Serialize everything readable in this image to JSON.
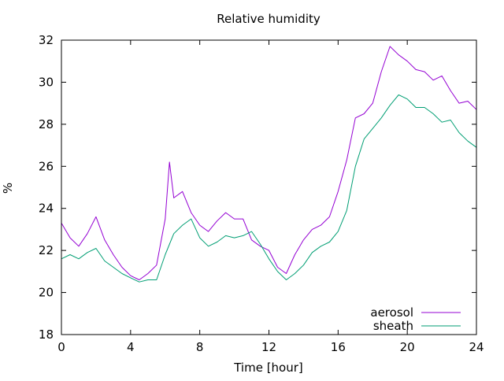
{
  "chart_data": {
    "type": "line",
    "title": "Relative humidity",
    "xlabel": "Time [hour]",
    "ylabel": "%",
    "xlim": [
      0,
      24
    ],
    "ylim": [
      18,
      32
    ],
    "xticks": [
      0,
      4,
      8,
      12,
      16,
      20,
      24
    ],
    "yticks": [
      18,
      20,
      22,
      24,
      26,
      28,
      30,
      32
    ],
    "grid": false,
    "legend_position": "bottom-right",
    "series": [
      {
        "name": "aerosol",
        "color": "#9400d3",
        "x": [
          0,
          0.5,
          1,
          1.5,
          2,
          2.5,
          3,
          3.5,
          4,
          4.5,
          5,
          5.5,
          6,
          6.25,
          6.5,
          7,
          7.5,
          8,
          8.5,
          9,
          9.5,
          10,
          10.5,
          11,
          11.5,
          12,
          12.5,
          13,
          13.5,
          14,
          14.5,
          15,
          15.5,
          16,
          16.5,
          17,
          17.5,
          18,
          18.5,
          19,
          19.5,
          20,
          20.5,
          21,
          21.5,
          22,
          22.5,
          23,
          23.5,
          24
        ],
        "y": [
          23.3,
          22.6,
          22.2,
          22.8,
          23.6,
          22.5,
          21.8,
          21.2,
          20.8,
          20.6,
          20.9,
          21.3,
          23.5,
          26.2,
          24.5,
          24.8,
          23.8,
          23.2,
          22.9,
          23.4,
          23.8,
          23.5,
          23.5,
          22.5,
          22.2,
          22.0,
          21.2,
          20.9,
          21.8,
          22.5,
          23.0,
          23.2,
          23.6,
          24.8,
          26.3,
          28.3,
          28.5,
          29.0,
          30.5,
          31.7,
          31.3,
          31.0,
          30.6,
          30.5,
          30.1,
          30.3,
          29.6,
          29.0,
          29.1,
          28.7
        ]
      },
      {
        "name": "sheath",
        "color": "#009e73",
        "x": [
          0,
          0.5,
          1,
          1.5,
          2,
          2.5,
          3,
          3.5,
          4,
          4.5,
          5,
          5.5,
          6,
          6.5,
          7,
          7.5,
          8,
          8.5,
          9,
          9.5,
          10,
          10.5,
          11,
          11.5,
          12,
          12.5,
          13,
          13.5,
          14,
          14.5,
          15,
          15.5,
          16,
          16.5,
          17,
          17.5,
          18,
          18.5,
          19,
          19.5,
          20,
          20.5,
          21,
          21.5,
          22,
          22.5,
          23,
          23.5,
          24
        ],
        "y": [
          21.6,
          21.8,
          21.6,
          21.9,
          22.1,
          21.5,
          21.2,
          20.9,
          20.7,
          20.5,
          20.6,
          20.6,
          21.8,
          22.8,
          23.2,
          23.5,
          22.6,
          22.2,
          22.4,
          22.7,
          22.6,
          22.7,
          22.9,
          22.3,
          21.6,
          21.0,
          20.6,
          20.9,
          21.3,
          21.9,
          22.2,
          22.4,
          22.9,
          23.9,
          26.0,
          27.3,
          27.8,
          28.3,
          28.9,
          29.4,
          29.2,
          28.8,
          28.8,
          28.5,
          28.1,
          28.2,
          27.6,
          27.2,
          26.9
        ]
      }
    ]
  }
}
